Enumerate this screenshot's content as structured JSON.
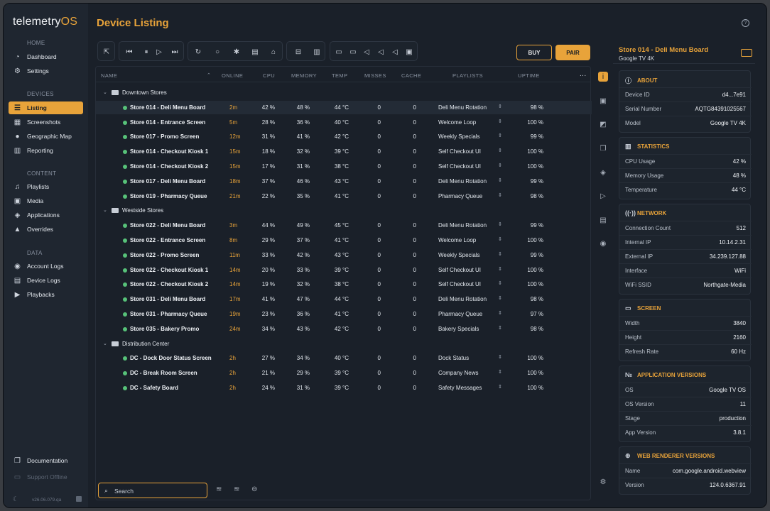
{
  "app": {
    "logo_text": "telemetry",
    "logo_suffix": "OS",
    "version": "v26.06.079.qa"
  },
  "sidebar": {
    "sections": [
      {
        "label": "HOME",
        "items": [
          {
            "label": "Dashboard",
            "icon": "gauge-icon"
          },
          {
            "label": "Settings",
            "icon": "gear-icon"
          }
        ]
      },
      {
        "label": "DEVICES",
        "items": [
          {
            "label": "Listing",
            "icon": "list-icon",
            "active": true
          },
          {
            "label": "Screenshots",
            "icon": "grid-icon"
          },
          {
            "label": "Geographic Map",
            "icon": "map-pin-icon"
          },
          {
            "label": "Reporting",
            "icon": "bar-chart-icon"
          }
        ]
      },
      {
        "label": "CONTENT",
        "items": [
          {
            "label": "Playlists",
            "icon": "playlist-icon"
          },
          {
            "label": "Media",
            "icon": "image-icon"
          },
          {
            "label": "Applications",
            "icon": "cube-icon"
          },
          {
            "label": "Overrides",
            "icon": "warning-icon"
          }
        ]
      },
      {
        "label": "DATA",
        "items": [
          {
            "label": "Account Logs",
            "icon": "user-icon"
          },
          {
            "label": "Device Logs",
            "icon": "document-icon"
          },
          {
            "label": "Playbacks",
            "icon": "play-circle-icon"
          }
        ]
      }
    ],
    "footer": {
      "documentation": "Documentation",
      "support": "Support Offline"
    }
  },
  "header": {
    "title": "Device Listing",
    "help": "?"
  },
  "toolbar": {
    "buy_label": "BUY",
    "pair_label": "PAIR"
  },
  "table": {
    "columns": [
      "NAME",
      "ONLINE",
      "CPU",
      "MEMORY",
      "TEMP",
      "MISSES",
      "CACHE",
      "PLAYLISTS",
      "UPTIME"
    ],
    "more": "...",
    "groups": [
      {
        "name": "Downtown Stores",
        "rows": [
          [
            "Store 014 - Deli Menu Board",
            "2m",
            "42 %",
            "48 %",
            "44 °C",
            "0",
            "0",
            "Deli Menu Rotation",
            "98 %"
          ],
          [
            "Store 014 - Entrance Screen",
            "5m",
            "28 %",
            "36 %",
            "40 °C",
            "0",
            "0",
            "Welcome Loop",
            "100 %"
          ],
          [
            "Store 017 - Promo Screen",
            "12m",
            "31 %",
            "41 %",
            "42 °C",
            "0",
            "0",
            "Weekly Specials",
            "99 %"
          ],
          [
            "Store 014 - Checkout Kiosk 1",
            "15m",
            "18 %",
            "32 %",
            "39 °C",
            "0",
            "0",
            "Self Checkout UI",
            "100 %"
          ],
          [
            "Store 014 - Checkout Kiosk 2",
            "15m",
            "17 %",
            "31 %",
            "38 °C",
            "0",
            "0",
            "Self Checkout UI",
            "100 %"
          ],
          [
            "Store 017 - Deli Menu Board",
            "18m",
            "37 %",
            "46 %",
            "43 °C",
            "0",
            "0",
            "Deli Menu Rotation",
            "99 %"
          ],
          [
            "Store 019 - Pharmacy Queue",
            "21m",
            "22 %",
            "35 %",
            "41 °C",
            "0",
            "0",
            "Pharmacy Queue",
            "98 %"
          ]
        ]
      },
      {
        "name": "Westside Stores",
        "rows": [
          [
            "Store 022 - Deli Menu Board",
            "3m",
            "44 %",
            "49 %",
            "45 °C",
            "0",
            "0",
            "Deli Menu Rotation",
            "99 %"
          ],
          [
            "Store 022 - Entrance Screen",
            "8m",
            "29 %",
            "37 %",
            "41 °C",
            "0",
            "0",
            "Welcome Loop",
            "100 %"
          ],
          [
            "Store 022 - Promo Screen",
            "11m",
            "33 %",
            "42 %",
            "43 °C",
            "0",
            "0",
            "Weekly Specials",
            "99 %"
          ],
          [
            "Store 022 - Checkout Kiosk 1",
            "14m",
            "20 %",
            "33 %",
            "39 °C",
            "0",
            "0",
            "Self Checkout UI",
            "100 %"
          ],
          [
            "Store 022 - Checkout Kiosk 2",
            "14m",
            "19 %",
            "32 %",
            "38 °C",
            "0",
            "0",
            "Self Checkout UI",
            "100 %"
          ],
          [
            "Store 031 - Deli Menu Board",
            "17m",
            "41 %",
            "47 %",
            "44 °C",
            "0",
            "0",
            "Deli Menu Rotation",
            "98 %"
          ],
          [
            "Store 031 - Pharmacy Queue",
            "19m",
            "23 %",
            "36 %",
            "41 °C",
            "0",
            "0",
            "Pharmacy Queue",
            "97 %"
          ],
          [
            "Store 035 - Bakery Promo",
            "24m",
            "34 %",
            "43 %",
            "42 °C",
            "0",
            "0",
            "Bakery Specials",
            "98 %"
          ]
        ]
      },
      {
        "name": "Distribution Center",
        "rows": [
          [
            "DC - Dock Door Status Screen",
            "2h",
            "27 %",
            "34 %",
            "40 °C",
            "0",
            "0",
            "Dock Status",
            "100 %"
          ],
          [
            "DC - Break Room Screen",
            "2h",
            "21 %",
            "29 %",
            "39 °C",
            "0",
            "0",
            "Company News",
            "100 %"
          ],
          [
            "DC - Safety Board",
            "2h",
            "24 %",
            "31 %",
            "39 °C",
            "0",
            "0",
            "Safety Messages",
            "100 %"
          ]
        ]
      }
    ],
    "search_placeholder": "Search"
  },
  "detail": {
    "title": "Store 014 - Deli Menu Board",
    "subtitle": "Google TV 4K",
    "cards": [
      {
        "title": "ABOUT",
        "icon": "info-icon",
        "rows": [
          [
            "Device ID",
            "d4...7e91"
          ],
          [
            "Serial Number",
            "AQTG84391025567"
          ],
          [
            "Model",
            "Google TV 4K"
          ]
        ]
      },
      {
        "title": "STATISTICS",
        "icon": "chart-icon",
        "rows": [
          [
            "CPU Usage",
            "42 %"
          ],
          [
            "Memory Usage",
            "48 %"
          ],
          [
            "Temperature",
            "44 °C"
          ]
        ]
      },
      {
        "title": "NETWORK",
        "icon": "signal-icon",
        "rows": [
          [
            "Connection Count",
            "512"
          ],
          [
            "Internal IP",
            "10.14.2.31"
          ],
          [
            "External IP",
            "34.239.127.88"
          ],
          [
            "Interface",
            "WiFi"
          ],
          [
            "WiFi SSID",
            "Northgate-Media"
          ]
        ]
      },
      {
        "title": "SCREEN",
        "icon": "monitor-icon",
        "rows": [
          [
            "Width",
            "3840"
          ],
          [
            "Height",
            "2160"
          ],
          [
            "Refresh Rate",
            "60 Hz"
          ]
        ]
      },
      {
        "title": "APPLICATION VERSIONS",
        "icon": "number-icon",
        "rows": [
          [
            "OS",
            "Google TV OS"
          ],
          [
            "OS Version",
            "11"
          ],
          [
            "Stage",
            "production"
          ],
          [
            "App Version",
            "3.8.1"
          ]
        ]
      },
      {
        "title": "WEB RENDERER VERSIONS",
        "icon": "globe-icon",
        "rows": [
          [
            "Name",
            "com.google.android.webview"
          ],
          [
            "Version",
            "124.0.6367.91"
          ]
        ]
      }
    ]
  },
  "colors": {
    "accent": "#e8a33a",
    "online_dot": "#57c279",
    "background": "#1a2029"
  }
}
